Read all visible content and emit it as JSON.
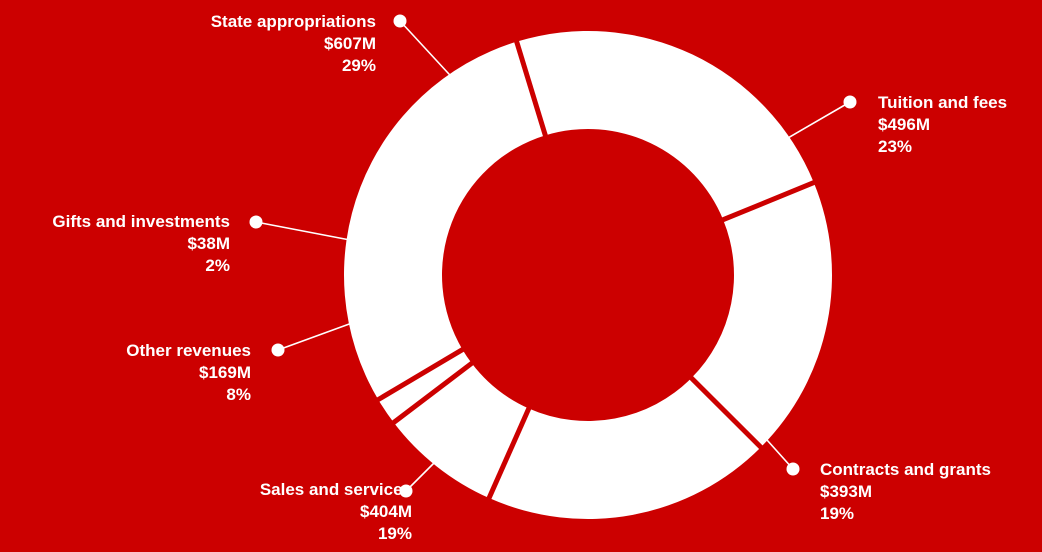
{
  "chart_data": {
    "type": "pie",
    "variant": "donut",
    "background_color": "#cc0000",
    "slice_color": "#ffffff",
    "legend": "none",
    "slices": [
      {
        "label": "Tuition and fees",
        "amount": "$496M",
        "percent_label": "23%",
        "value": 496
      },
      {
        "label": "Contracts and grants",
        "amount": "$393M",
        "percent_label": "19%",
        "value": 393
      },
      {
        "label": "Sales and services",
        "amount": "$404M",
        "percent_label": "19%",
        "value": 404
      },
      {
        "label": "Other revenues",
        "amount": "$169M",
        "percent_label": "8%",
        "value": 169
      },
      {
        "label": "Gifts and investments",
        "amount": "$38M",
        "percent_label": "2%",
        "value": 38
      },
      {
        "label": "State appropriations",
        "amount": "$607M",
        "percent_label": "29%",
        "value": 607
      }
    ]
  }
}
